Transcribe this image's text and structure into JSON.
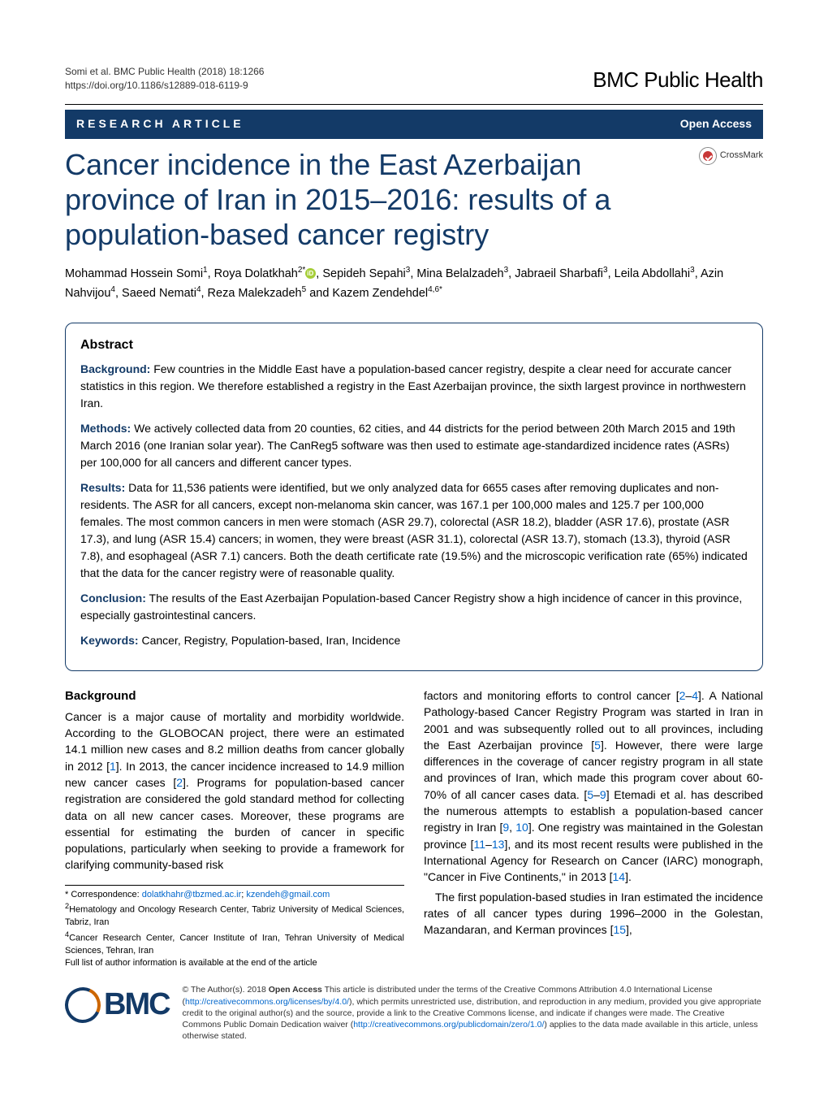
{
  "meta": {
    "citation_line1": "Somi et al. BMC Public Health      (2018) 18:1266",
    "doi_line": "https://doi.org/10.1186/s12889-018-6119-9",
    "journal_brand": "BMC Public Health"
  },
  "band": {
    "left": "RESEARCH ARTICLE",
    "right": "Open Access"
  },
  "crossmark_label": "CrossMark",
  "title": "Cancer incidence in the East Azerbaijan province of Iran in 2015–2016: results of a population-based cancer registry",
  "authors_html": "Mohammad Hossein Somi<sup>1</sup>, Roya Dolatkhah<sup>2*</sup><span class='orcid'></span>, Sepideh Sepahi<sup>3</sup>, Mina Belalzadeh<sup>3</sup>, Jabraeil Sharbafi<sup>3</sup>, Leila Abdollahi<sup>3</sup>, Azin Nahvijou<sup>4</sup>, Saeed Nemati<sup>4</sup>, Reza Malekzadeh<sup>5</sup> and Kazem Zendehdel<sup>4,6*</sup>",
  "abstract": {
    "heading": "Abstract",
    "background_label": "Background:",
    "background_text": " Few countries in the Middle East have a population-based cancer registry, despite a clear need for accurate cancer statistics in this region. We therefore established a registry in the East Azerbaijan province, the sixth largest province in northwestern Iran.",
    "methods_label": "Methods:",
    "methods_text": " We actively collected data from 20 counties, 62 cities, and 44 districts for the period between 20th March 2015 and 19th March 2016 (one Iranian solar year). The CanReg5 software was then used to estimate age-standardized incidence rates (ASRs) per 100,000 for all cancers and different cancer types.",
    "results_label": "Results:",
    "results_text": " Data for 11,536 patients were identified, but we only analyzed data for 6655 cases after removing duplicates and non-residents. The ASR for all cancers, except non-melanoma skin cancer, was 167.1 per 100,000 males and 125.7 per 100,000 females. The most common cancers in men were stomach (ASR 29.7), colorectal (ASR 18.2), bladder (ASR 17.6), prostate (ASR 17.3), and lung (ASR 15.4) cancers; in women, they were breast (ASR 31.1), colorectal (ASR 13.7), stomach (13.3), thyroid (ASR 7.8), and esophageal (ASR 7.1) cancers. Both the death certificate rate (19.5%) and the microscopic verification rate (65%) indicated that the data for the cancer registry were of reasonable quality.",
    "conclusion_label": "Conclusion:",
    "conclusion_text": " The results of the East Azerbaijan Population-based Cancer Registry show a high incidence of cancer in this province, especially gastrointestinal cancers.",
    "keywords_label": "Keywords:",
    "keywords_text": " Cancer, Registry, Population-based, Iran, Incidence"
  },
  "background": {
    "heading": "Background",
    "col1_p1": "Cancer is a major cause of mortality and morbidity worldwide. According to the GLOBOCAN project, there were an estimated 14.1 million new cases and 8.2 million deaths from cancer globally in 2012 [",
    "ref1": "1",
    "col1_p1b": "]. In 2013, the cancer incidence increased to 14.9 million new cancer cases [",
    "ref2": "2",
    "col1_p1c": "]. Programs for population-based cancer registration are considered the gold standard method for collecting data on all new cancer cases. Moreover, these programs are essential for estimating the burden of cancer in specific populations, particularly when seeking to provide a framework for clarifying community-based risk",
    "col2_p1a": "factors and monitoring efforts to control cancer [",
    "ref2b": "2",
    "dash1": "–",
    "ref4": "4",
    "col2_p1b": "]. A National Pathology-based Cancer Registry Program was started in Iran in 2001 and was subsequently rolled out to all provinces, including the East Azerbaijan province [",
    "ref5": "5",
    "col2_p1c": "]. However, there were large differences in the coverage of cancer registry program in all state and provinces of Iran, which made this program cover about 60-70% of all cancer cases data. [",
    "ref5b": "5",
    "dash2": "–",
    "ref9": "9",
    "col2_p1d": "] Etemadi et al. has described the numerous attempts to establish a population-based cancer registry in Iran [",
    "ref9b": "9",
    "comma1": ", ",
    "ref10": "10",
    "col2_p1e": "]. One registry was maintained in the Golestan province [",
    "ref11": "11",
    "dash3": "–",
    "ref13": "13",
    "col2_p1f": "], and its most recent results were published in the International Agency for Research on Cancer (IARC) monograph, \"Cancer in Five Continents,\" in 2013 [",
    "ref14": "14",
    "col2_p1g": "].",
    "col2_p2a": "The first population-based studies in Iran estimated the incidence rates of all cancer types during 1996–2000 in the Golestan, Mazandaran, and Kerman provinces [",
    "ref15": "15",
    "col2_p2b": "],"
  },
  "correspondence": {
    "label": "* Correspondence: ",
    "email1": "dolatkhahr@tbzmed.ac.ir",
    "sep": "; ",
    "email2": "kzendeh@gmail.com",
    "aff2": "2Hematology and Oncology Research Center, Tabriz University of Medical Sciences, Tabriz, Iran",
    "aff4": "4Cancer Research Center, Cancer Institute of Iran, Tehran University of Medical Sciences, Tehran, Iran",
    "full_list": "Full list of author information is available at the end of the article"
  },
  "license": {
    "text_a": "© The Author(s). 2018 ",
    "open_access": "Open Access",
    "text_b": " This article is distributed under the terms of the Creative Commons Attribution 4.0 International License (",
    "link1": "http://creativecommons.org/licenses/by/4.0/",
    "text_c": "), which permits unrestricted use, distribution, and reproduction in any medium, provided you give appropriate credit to the original author(s) and the source, provide a link to the Creative Commons license, and indicate if changes were made. The Creative Commons Public Domain Dedication waiver (",
    "link2": "http://creativecommons.org/publicdomain/zero/1.0/",
    "text_d": ") applies to the data made available in this article, unless otherwise stated."
  },
  "colors": {
    "brand_blue": "#133a67",
    "link_blue": "#0066cc",
    "orcid_green": "#a6ce39",
    "crossmark_red": "#c83737"
  }
}
